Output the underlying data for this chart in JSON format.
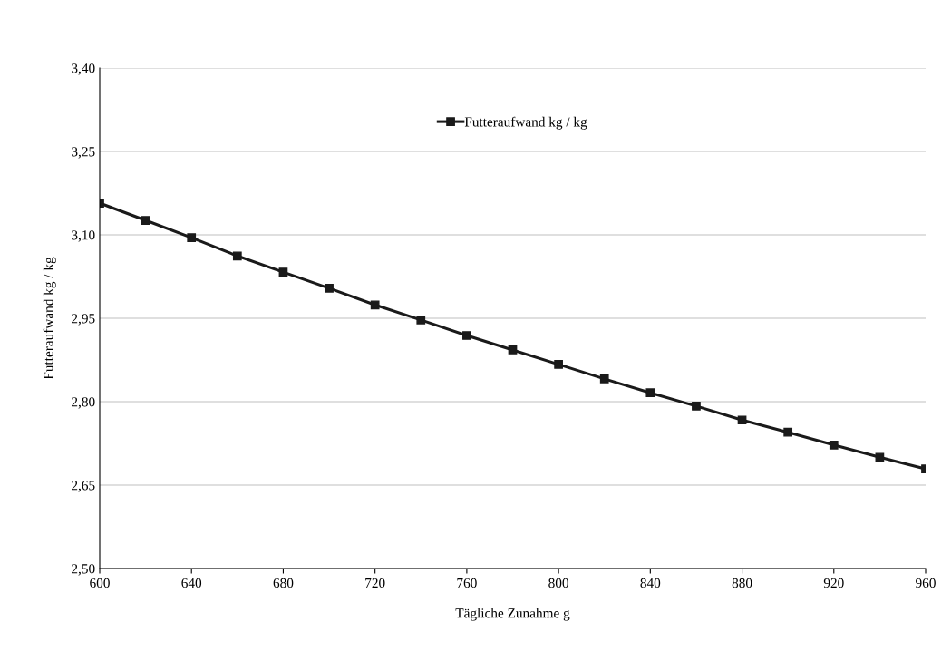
{
  "chart_data": {
    "type": "line",
    "xlabel": "Tägliche Zunahme g",
    "ylabel": "Futteraufwand kg / kg",
    "x": [
      600,
      620,
      640,
      660,
      680,
      700,
      720,
      740,
      760,
      780,
      800,
      820,
      840,
      860,
      880,
      900,
      920,
      940,
      960
    ],
    "series": [
      {
        "name": "Futteraufwand kg / kg",
        "color": "#1a1a1a",
        "values": [
          3.157,
          3.126,
          3.095,
          3.062,
          3.033,
          3.004,
          2.974,
          2.947,
          2.919,
          2.893,
          2.867,
          2.841,
          2.816,
          2.792,
          2.767,
          2.745,
          2.722,
          2.7,
          2.679
        ]
      }
    ],
    "xlim": [
      600,
      960
    ],
    "xticks": [
      600,
      640,
      680,
      720,
      760,
      800,
      840,
      880,
      920,
      960
    ],
    "ylim": [
      2.5,
      3.4
    ],
    "yticks": [
      {
        "value": 2.5,
        "label": "2,50"
      },
      {
        "value": 2.65,
        "label": "2,65"
      },
      {
        "value": 2.8,
        "label": "2,80"
      },
      {
        "value": 2.95,
        "label": "2,95"
      },
      {
        "value": 3.1,
        "label": "3,10"
      },
      {
        "value": 3.25,
        "label": "3,25"
      },
      {
        "value": 3.4,
        "label": "3,40"
      }
    ],
    "grid": "y",
    "legend": "top",
    "marker": "square",
    "line_style": "solid"
  }
}
